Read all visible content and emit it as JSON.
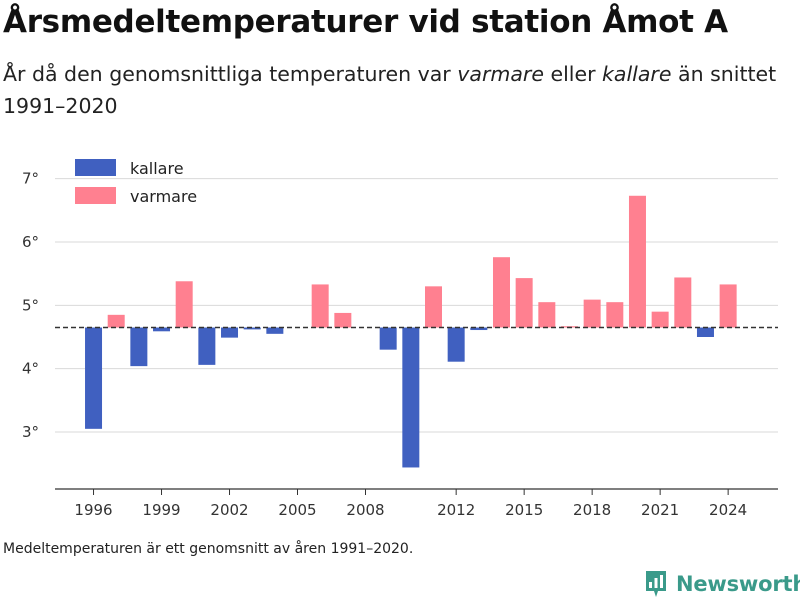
{
  "title": "Årsmedeltemperaturer vid station Åmot A",
  "subtitle": {
    "part1": "År då den genomsnittliga temperaturen var ",
    "warmer": "varmare",
    "part2": " eller ",
    "colder": "kallare",
    "part3": " än snittet 1991–2020"
  },
  "footnote": "Medeltemperaturen är ett genomsnitt av åren 1991–2020.",
  "brand": "Newsworthy",
  "colors": {
    "colder": "#4060c0",
    "warmer": "#ff8090",
    "grid": "#d9d9d9",
    "reference": "#333333"
  },
  "chart_data": {
    "type": "bar",
    "baseline": 4.65,
    "ylim": [
      2.1,
      7.2
    ],
    "xlim": [
      1994.3,
      2026.2
    ],
    "yticks": [
      {
        "value": 3,
        "label": "3°"
      },
      {
        "value": 4,
        "label": "4°"
      },
      {
        "value": 5,
        "label": "5°"
      },
      {
        "value": 6,
        "label": "6°"
      },
      {
        "value": 7,
        "label": "7°"
      }
    ],
    "xticks": [
      1996,
      1999,
      2002,
      2005,
      2008,
      2012,
      2015,
      2018,
      2021,
      2024
    ],
    "legend": {
      "position": "top-left",
      "items": [
        {
          "key": "colder",
          "label": "kallare"
        },
        {
          "key": "warmer",
          "label": "varmare"
        }
      ]
    },
    "data": [
      {
        "year": 1996,
        "value": 3.05
      },
      {
        "year": 1997,
        "value": 4.85
      },
      {
        "year": 1998,
        "value": 4.04
      },
      {
        "year": 1999,
        "value": 4.59
      },
      {
        "year": 2000,
        "value": 5.38
      },
      {
        "year": 2001,
        "value": 4.06
      },
      {
        "year": 2002,
        "value": 4.49
      },
      {
        "year": 2003,
        "value": 4.62
      },
      {
        "year": 2004,
        "value": 4.55
      },
      {
        "year": 2006,
        "value": 5.33
      },
      {
        "year": 2007,
        "value": 4.88
      },
      {
        "year": 2009,
        "value": 4.3
      },
      {
        "year": 2010,
        "value": 2.44
      },
      {
        "year": 2011,
        "value": 5.3
      },
      {
        "year": 2012,
        "value": 4.11
      },
      {
        "year": 2013,
        "value": 4.61
      },
      {
        "year": 2014,
        "value": 5.76
      },
      {
        "year": 2015,
        "value": 5.43
      },
      {
        "year": 2016,
        "value": 5.05
      },
      {
        "year": 2017,
        "value": 4.67
      },
      {
        "year": 2018,
        "value": 5.09
      },
      {
        "year": 2019,
        "value": 5.05
      },
      {
        "year": 2020,
        "value": 6.73
      },
      {
        "year": 2021,
        "value": 4.9
      },
      {
        "year": 2022,
        "value": 5.44
      },
      {
        "year": 2023,
        "value": 4.5
      },
      {
        "year": 2024,
        "value": 5.33
      }
    ]
  }
}
